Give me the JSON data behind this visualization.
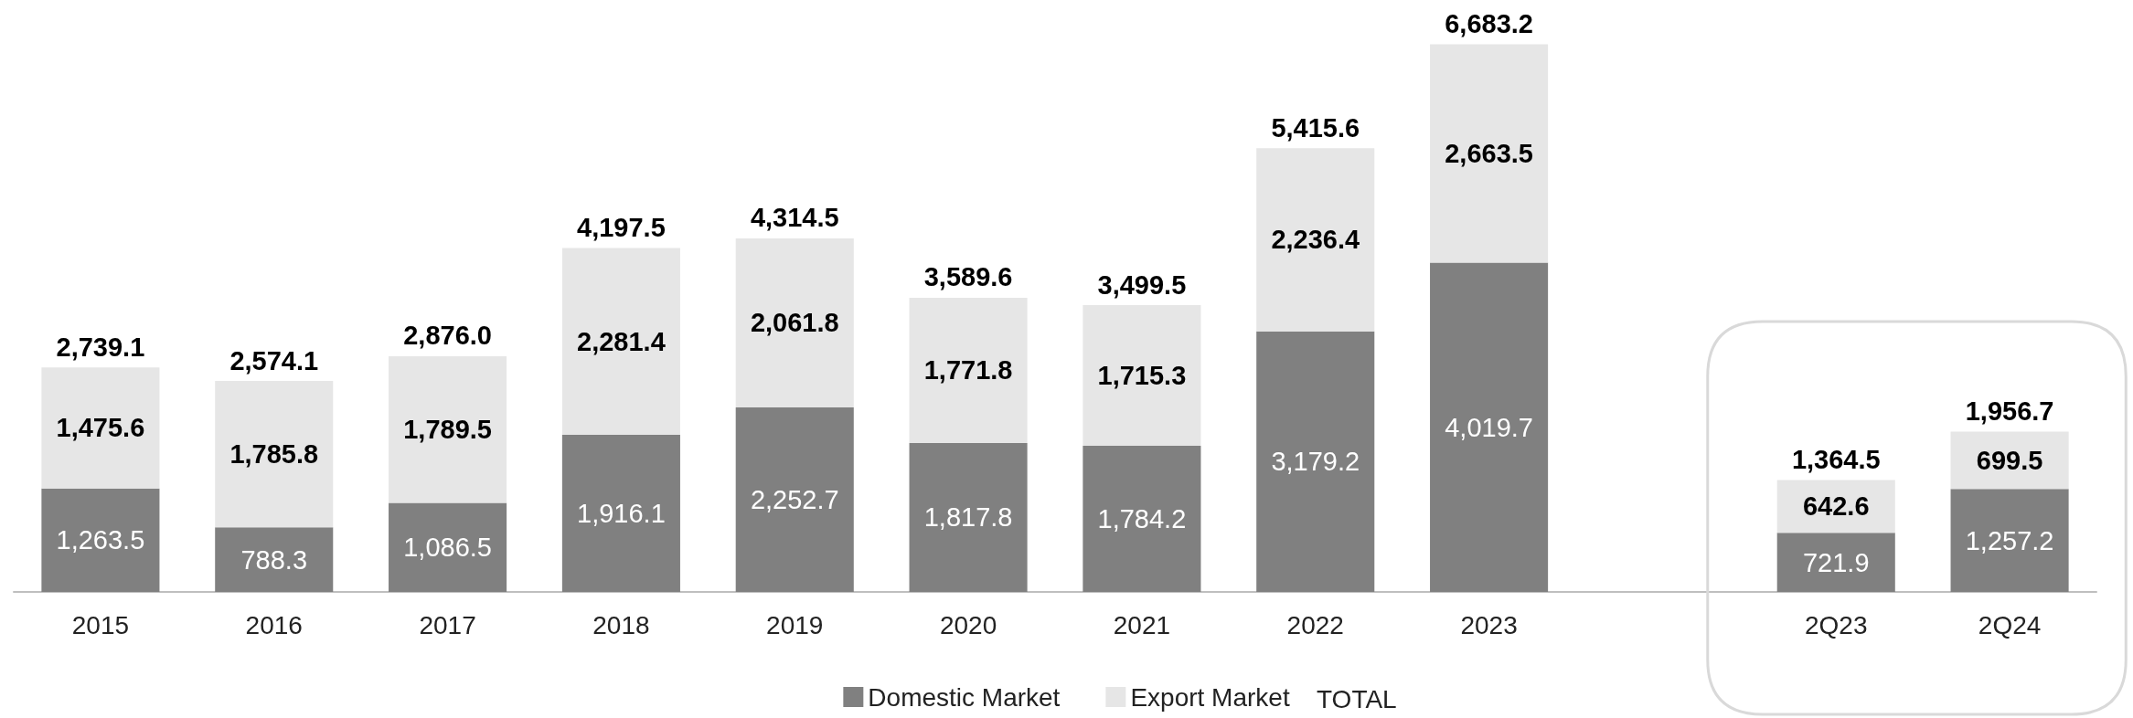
{
  "chart_data": {
    "type": "bar",
    "stacked": true,
    "tick_labels": "x",
    "legend": "bottom",
    "categories": [
      "2015",
      "2016",
      "2017",
      "2018",
      "2019",
      "2020",
      "2021",
      "2022",
      "2023",
      null,
      "2Q23",
      "2Q24"
    ],
    "series": [
      {
        "name": "Domestic Market",
        "color": "#808080",
        "values": [
          1263.5,
          788.3,
          1086.5,
          1916.1,
          2252.7,
          1817.8,
          1784.2,
          3179.2,
          4019.7,
          null,
          721.9,
          1257.2
        ],
        "value_labels": [
          "1,263.5",
          "788.3",
          "1,086.5",
          "1,916.1",
          "2,252.7",
          "1,817.8",
          "1,784.2",
          "3,179.2",
          "4,019.7",
          null,
          "721.9",
          "1,257.2"
        ]
      },
      {
        "name": "Export Market",
        "color": "#e6e6e6",
        "values": [
          1475.6,
          1785.8,
          1789.5,
          2281.4,
          2061.8,
          1771.8,
          1715.3,
          2236.4,
          2663.5,
          null,
          642.6,
          699.5
        ],
        "value_labels": [
          "1,475.6",
          "1,785.8",
          "1,789.5",
          "2,281.4",
          "2,061.8",
          "1,771.8",
          "1,715.3",
          "2,236.4",
          "2,663.5",
          null,
          "642.6",
          "699.5"
        ]
      }
    ],
    "totals": [
      "2,739.1",
      "2,574.1",
      "2,876.0",
      "4,197.5",
      "4,314.5",
      "3,589.6",
      "3,499.5",
      "5,415.6",
      "6,683.2",
      null,
      "1,364.5",
      "1,956.7"
    ],
    "annotations": [
      "TOTAL"
    ]
  }
}
